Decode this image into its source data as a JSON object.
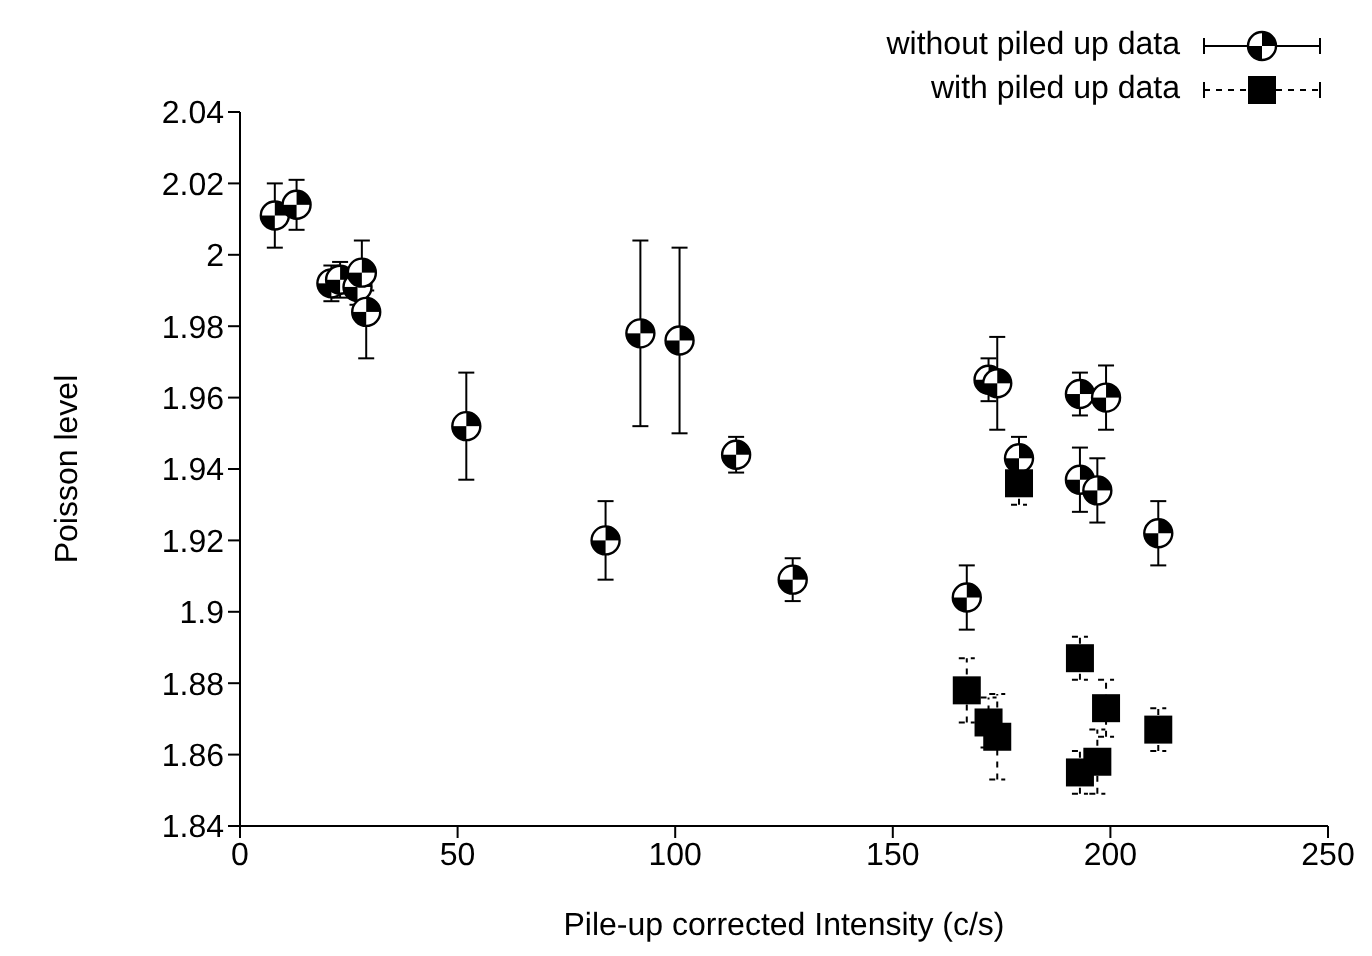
{
  "chart_data": {
    "type": "scatter",
    "xlabel": "Pile-up corrected Intensity (c/s)",
    "ylabel": "Poisson level",
    "xlim": [
      0,
      250
    ],
    "xticks": [
      0,
      50,
      100,
      150,
      200,
      250
    ],
    "ylim": [
      1.84,
      2.04
    ],
    "yticks": [
      1.84,
      1.86,
      1.88,
      1.9,
      1.92,
      1.94,
      1.96,
      1.98,
      2,
      2.02,
      2.04
    ],
    "grid": false,
    "legend": "top right",
    "series": [
      {
        "name": "without piled up data",
        "color": "#000000",
        "marker": "circle",
        "line_style": "solid",
        "x": [
          8,
          13,
          21,
          23,
          27,
          28,
          29,
          52,
          84,
          92,
          101,
          114,
          127,
          167,
          172,
          174,
          179,
          193,
          193,
          197,
          199,
          211
        ],
        "values": [
          2.011,
          2.014,
          1.992,
          1.993,
          1.991,
          1.995,
          1.984,
          1.952,
          1.92,
          1.978,
          1.976,
          1.944,
          1.909,
          1.904,
          1.965,
          1.964,
          1.943,
          1.961,
          1.937,
          1.934,
          1.96,
          1.922
        ],
        "errors": [
          0.009,
          0.007,
          0.005,
          0.005,
          0.005,
          0.009,
          [
            1.971,
            1.99
          ],
          0.015,
          0.011,
          0.026,
          0.026,
          0.005,
          0.006,
          0.009,
          0.006,
          0.013,
          0.006,
          0.006,
          0.009,
          0.009,
          0.009,
          0.009
        ]
      },
      {
        "name": "with piled up data",
        "color": "#000000",
        "marker": "square",
        "line_style": "dashed",
        "x": [
          179,
          167,
          172,
          174,
          193,
          199,
          193,
          197,
          211
        ],
        "values": [
          1.936,
          1.878,
          1.869,
          1.865,
          1.887,
          1.873,
          1.855,
          1.858,
          1.867
        ],
        "errors": [
          [
            1.93,
            1.94
          ],
          0.009,
          0.007,
          0.012,
          0.006,
          0.008,
          0.006,
          0.009,
          0.006
        ]
      }
    ]
  }
}
